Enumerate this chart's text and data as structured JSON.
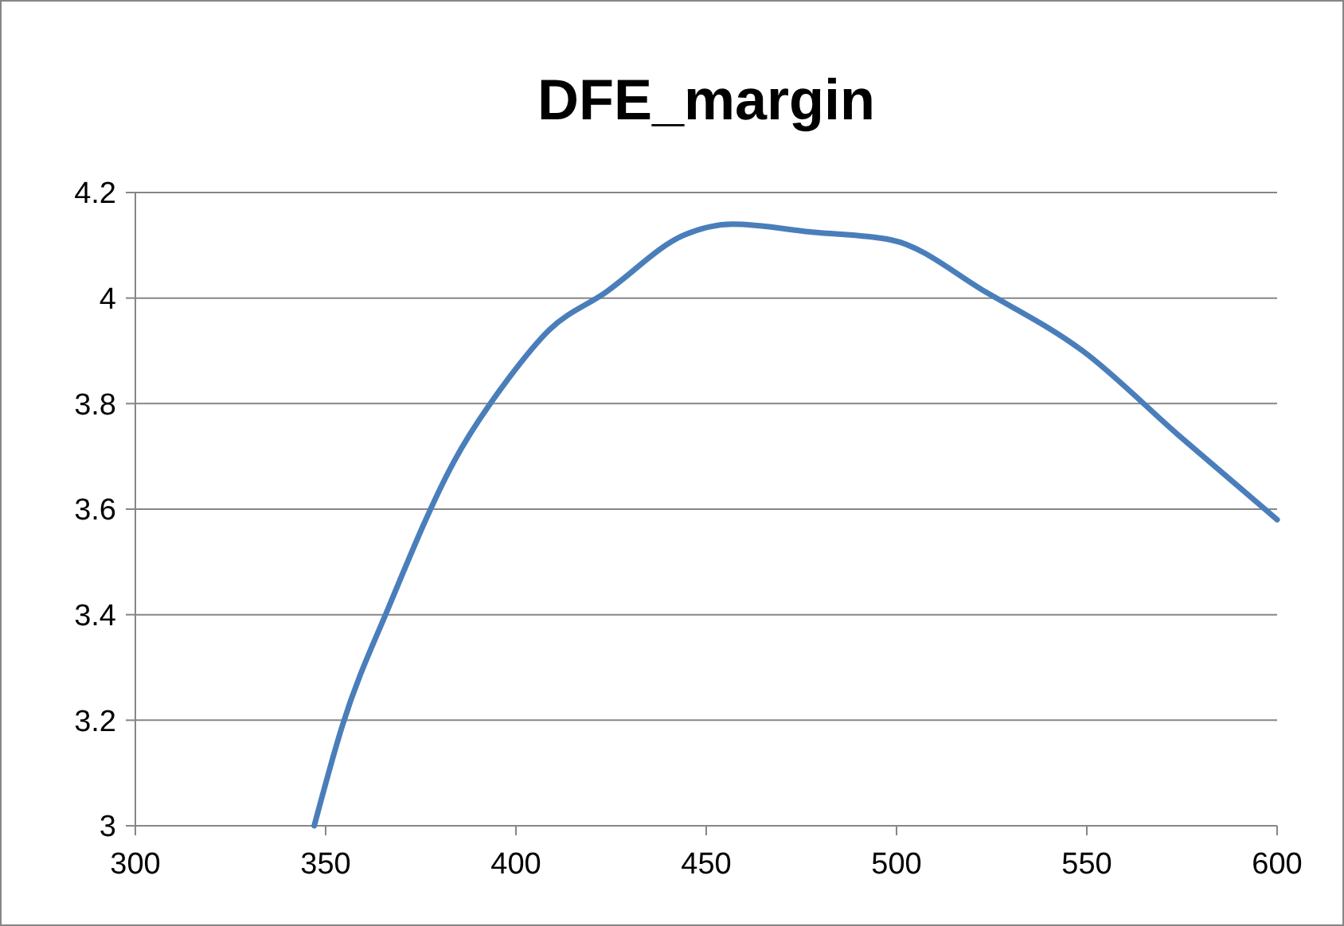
{
  "chart_data": {
    "type": "line",
    "title": "DFE_margin",
    "x": [
      347,
      354.4,
      366.9,
      383.7,
      398.3,
      408.8,
      423.4,
      444.4,
      456.9,
      477.8,
      498.7,
      523.8,
      548.9,
      574.1,
      600
    ],
    "series": [
      {
        "color": "#4a7ebb",
        "values": [
          3.0,
          3.19,
          3.42,
          3.69,
          3.85,
          3.94,
          4.01,
          4.12,
          4.14,
          4.125,
          4.11,
          4.01,
          3.9,
          3.74,
          3.58
        ]
      }
    ],
    "xlim": [
      300,
      600
    ],
    "xticks": [
      300,
      350,
      400,
      450,
      500,
      550,
      600
    ],
    "ylim": [
      3,
      4.2
    ],
    "yticks": [
      3,
      {
        "value": 3.2,
        "label": "3.2"
      },
      {
        "value": 3.4,
        "label": "3.4"
      },
      {
        "value": 3.6,
        "label": "3.6"
      },
      {
        "value": 3.8,
        "label": "3.8"
      },
      4,
      {
        "value": 4.2,
        "label": "4.2"
      }
    ],
    "grid": "y",
    "marker": "none",
    "line_style": "solid"
  }
}
